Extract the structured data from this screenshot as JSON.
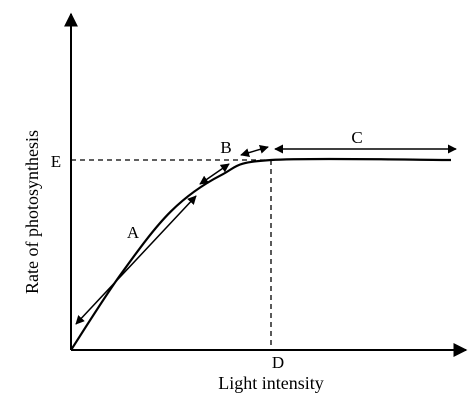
{
  "chart_data": {
    "type": "line",
    "title": "",
    "xlabel": "Light intensity",
    "ylabel": "Rate of photosynthesis",
    "x_ticks": [
      "D"
    ],
    "y_ticks": [
      "E"
    ],
    "series": [
      {
        "points": [
          {
            "x": 0,
            "y": 0
          },
          {
            "x": 50,
            "y": 40
          },
          {
            "x": 100,
            "y": 73
          },
          {
            "x": 150,
            "y": 92
          },
          {
            "x": 200,
            "y": 100
          },
          {
            "x": 380,
            "y": 100
          }
        ]
      }
    ],
    "reference_lines": [
      {
        "axis": "y",
        "value": 100,
        "label": "E",
        "style": "dashed"
      },
      {
        "axis": "x",
        "value": 200,
        "label": "D",
        "style": "dashed"
      }
    ],
    "annotations": [
      {
        "label": "A",
        "kind": "double-arrow",
        "region": "linear rise"
      },
      {
        "label": "B",
        "kind": "double-arrow",
        "region": "bend"
      },
      {
        "label": "C",
        "kind": "double-arrow",
        "region": "plateau"
      }
    ],
    "grid": false
  }
}
